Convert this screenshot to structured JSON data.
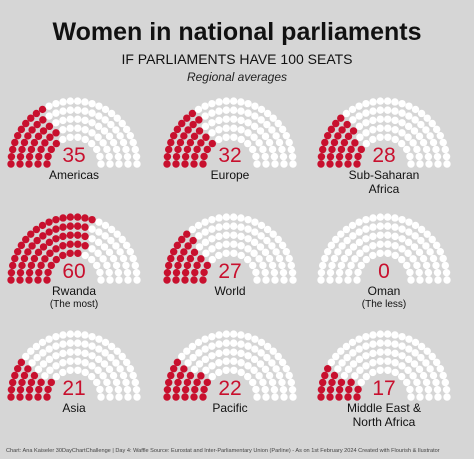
{
  "chart_data": {
    "type": "parliament",
    "title": "Women in national parliaments",
    "subtitle": "IF PARLIAMENTS HAVE 100 SEATS",
    "description": "Regional averages",
    "seats": 100,
    "categories": [
      "Americas",
      "Europe",
      "Sub-Saharan Africa",
      "Rwanda",
      "World",
      "Oman",
      "Asia",
      "Pacific",
      "Middle East & North Africa"
    ],
    "notes": [
      null,
      null,
      null,
      "(The most)",
      null,
      "(The less)",
      null,
      null,
      null
    ],
    "values": [
      35,
      32,
      28,
      60,
      27,
      0,
      21,
      22,
      17
    ],
    "color": "#c8102e",
    "empty_color": "#ffffff",
    "footer": "Chart: Ana Kaiseler   30DayChartChallenge | Day 4: Waffle   Source: Eurostat and Inter-Parliamentary Union (Parline) - As on 1st February 2024   Created with Flourish & Ilustrator"
  }
}
